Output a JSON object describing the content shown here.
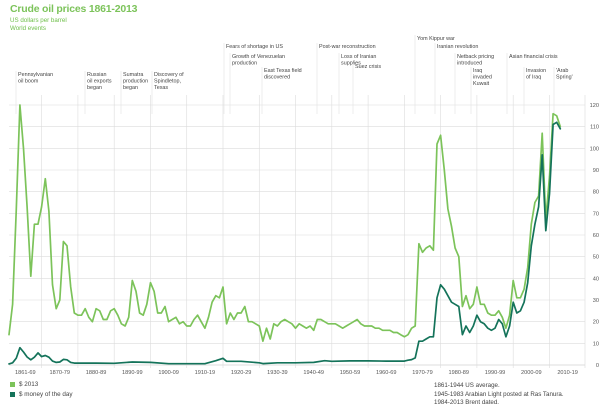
{
  "chart_data": {
    "type": "line",
    "title": "Crude oil prices 1861-2013",
    "subtitle": "US dollars per barrel",
    "events_heading": "World events",
    "xlabel": "",
    "ylabel": "",
    "ylim": [
      0,
      120
    ],
    "yticks": [
      0,
      10,
      20,
      30,
      40,
      50,
      60,
      70,
      80,
      90,
      100,
      110,
      120
    ],
    "xlim": [
      1861,
      2013
    ],
    "xtick_labels": [
      "1861-69",
      "1870-79",
      "1880-89",
      "1890-99",
      "1900-09",
      "1910-19",
      "1920-29",
      "1930-39",
      "1940-49",
      "1950-59",
      "1960-69",
      "1970-79",
      "1980-89",
      "1990-99",
      "2000-09",
      "2010-19"
    ],
    "grid": true,
    "legend_position": "bottom-left",
    "series": [
      {
        "name": "$ 2013",
        "color": "#7cc35a",
        "x": [
          1861,
          1862,
          1863,
          1864,
          1865,
          1866,
          1867,
          1868,
          1869,
          1870,
          1871,
          1872,
          1873,
          1874,
          1875,
          1876,
          1877,
          1878,
          1879,
          1880,
          1881,
          1882,
          1883,
          1884,
          1885,
          1886,
          1887,
          1888,
          1889,
          1890,
          1891,
          1892,
          1893,
          1894,
          1895,
          1896,
          1897,
          1898,
          1899,
          1900,
          1901,
          1902,
          1903,
          1904,
          1905,
          1906,
          1907,
          1908,
          1909,
          1910,
          1911,
          1912,
          1913,
          1914,
          1915,
          1916,
          1917,
          1918,
          1919,
          1920,
          1921,
          1922,
          1923,
          1924,
          1925,
          1926,
          1927,
          1928,
          1929,
          1930,
          1931,
          1932,
          1933,
          1934,
          1935,
          1936,
          1937,
          1938,
          1939,
          1940,
          1941,
          1942,
          1943,
          1944,
          1945,
          1946,
          1947,
          1948,
          1949,
          1950,
          1951,
          1952,
          1953,
          1954,
          1955,
          1956,
          1957,
          1958,
          1959,
          1960,
          1961,
          1962,
          1963,
          1964,
          1965,
          1966,
          1967,
          1968,
          1969,
          1970,
          1971,
          1972,
          1973,
          1974,
          1975,
          1976,
          1977,
          1978,
          1979,
          1980,
          1981,
          1982,
          1983,
          1984,
          1985,
          1986,
          1987,
          1988,
          1989,
          1990,
          1991,
          1992,
          1993,
          1994,
          1995,
          1996,
          1997,
          1998,
          1999,
          2000,
          2001,
          2002,
          2003,
          2004,
          2005,
          2006,
          2007,
          2008,
          2009,
          2010,
          2011,
          2012,
          2013
        ],
        "values": [
          14,
          28,
          72,
          120,
          100,
          73,
          41,
          65,
          65,
          73,
          86,
          71,
          37,
          26,
          30,
          57,
          55,
          36,
          24,
          23,
          23,
          26,
          22,
          20,
          26,
          25,
          21,
          21,
          25,
          26,
          23,
          19,
          18,
          22,
          39,
          34,
          24,
          23,
          28,
          38,
          34,
          24,
          24,
          27,
          20,
          21,
          22,
          19,
          20,
          18,
          18,
          21,
          23,
          20,
          17,
          22,
          29,
          32,
          31,
          36,
          19,
          24,
          21,
          24,
          24,
          27,
          20,
          20,
          19,
          18,
          11,
          17,
          12,
          19,
          18,
          20,
          21,
          20,
          19,
          17,
          19,
          18,
          17,
          18,
          16,
          21,
          21,
          20,
          19,
          19,
          19,
          18,
          17,
          18,
          19,
          20,
          21,
          19,
          18,
          18,
          18,
          17,
          17,
          16,
          16,
          16,
          15,
          15,
          14,
          13,
          14,
          17,
          18,
          56,
          52,
          54,
          55,
          53,
          102,
          106,
          90,
          72,
          64,
          54,
          50,
          27,
          32,
          26,
          28,
          36,
          28,
          28,
          24,
          23,
          23,
          25,
          22,
          17,
          23,
          39,
          31,
          31,
          35,
          45,
          65,
          75,
          78,
          107,
          67,
          87,
          116,
          115,
          110
        ]
      },
      {
        "name": "$ money of the day",
        "color": "#14735a",
        "x": [
          1861,
          1862,
          1863,
          1864,
          1865,
          1866,
          1867,
          1868,
          1869,
          1870,
          1871,
          1872,
          1873,
          1874,
          1875,
          1876,
          1877,
          1878,
          1879,
          1880,
          1885,
          1890,
          1895,
          1900,
          1905,
          1910,
          1915,
          1918,
          1920,
          1921,
          1925,
          1930,
          1931,
          1935,
          1940,
          1945,
          1948,
          1950,
          1955,
          1960,
          1965,
          1969,
          1970,
          1971,
          1972,
          1973,
          1974,
          1975,
          1976,
          1977,
          1978,
          1979,
          1980,
          1981,
          1982,
          1983,
          1984,
          1985,
          1986,
          1987,
          1988,
          1989,
          1990,
          1991,
          1992,
          1993,
          1994,
          1995,
          1996,
          1997,
          1998,
          1999,
          2000,
          2001,
          2002,
          2003,
          2004,
          2005,
          2006,
          2007,
          2008,
          2009,
          2010,
          2011,
          2012,
          2013
        ],
        "values": [
          0.5,
          1,
          3.2,
          8,
          6,
          3.7,
          2.4,
          3.6,
          5.6,
          3.9,
          4.4,
          3.6,
          1.8,
          1.2,
          1.4,
          2.6,
          2.4,
          1.2,
          0.9,
          0.9,
          0.9,
          0.8,
          1.4,
          1.2,
          0.6,
          0.6,
          0.6,
          2,
          3.1,
          1.7,
          1.7,
          1,
          0.65,
          1,
          1.0,
          1.2,
          2.0,
          1.7,
          1.9,
          1.9,
          1.8,
          1.8,
          1.8,
          2.2,
          2.5,
          3.3,
          11,
          11,
          12,
          13,
          13,
          31,
          37,
          35,
          32,
          29,
          28,
          27,
          14,
          18,
          15,
          18,
          23,
          20,
          19,
          17,
          16,
          17,
          21,
          19,
          13,
          18,
          29,
          24,
          25,
          29,
          38,
          55,
          65,
          73,
          97,
          62,
          79,
          111,
          112,
          109
        ]
      }
    ],
    "events": [
      {
        "label_lines": [
          "Pennsylvanian",
          "oil boom"
        ],
        "year": 1863
      },
      {
        "label_lines": [
          "Russian",
          "oil exports",
          "began"
        ],
        "year": 1882
      },
      {
        "label_lines": [
          "Sumatra",
          "production",
          "began"
        ],
        "year": 1892
      },
      {
        "label_lines": [
          "Discovery of",
          "Spindletop,",
          "Texas"
        ],
        "year": 1901
      },
      {
        "label_lines": [
          "Fears of shortage in US"
        ],
        "year": 1920
      },
      {
        "label_lines": [
          "Growth of Venezuelan",
          "production"
        ],
        "year": 1922
      },
      {
        "label_lines": [
          "East Texas field",
          "discovered"
        ],
        "year": 1931
      },
      {
        "label_lines": [
          "Post-war reconstruction"
        ],
        "year": 1946
      },
      {
        "label_lines": [
          "Loss of Iranian",
          "supplies"
        ],
        "year": 1952
      },
      {
        "label_lines": [
          "Suez crisis"
        ],
        "year": 1956
      },
      {
        "label_lines": [
          "Yom Kippur war"
        ],
        "year": 1973
      },
      {
        "label_lines": [
          "Iranian revolution"
        ],
        "year": 1979
      },
      {
        "label_lines": [
          "Netback pricing",
          "introduced"
        ],
        "year": 1984
      },
      {
        "label_lines": [
          "Iraq",
          "invaded",
          "Kuwait"
        ],
        "year": 1990
      },
      {
        "label_lines": [
          "Asian financial crisis"
        ],
        "year": 1997
      },
      {
        "label_lines": [
          "Invasion",
          "of Iraq"
        ],
        "year": 2003
      },
      {
        "label_lines": [
          "'Arab",
          "Spring'"
        ],
        "year": 2011
      }
    ],
    "notes": [
      "1861-1944 US average.",
      "1945-1983 Arabian Light posted at Ras Tanura.",
      "1984-2013 Brent dated."
    ]
  }
}
